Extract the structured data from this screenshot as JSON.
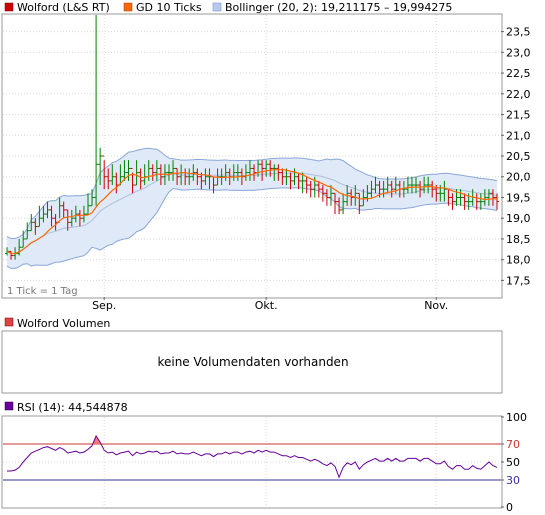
{
  "colors": {
    "bar_up": "#008000",
    "bar_down": "#cc0000",
    "gd": "#ff6600",
    "band_fill": "#dfe9f8",
    "band_line": "#8aa7d6",
    "mid_line": "#aebfdc",
    "rsi_line": "#660099",
    "rsi_upper": "#cc3333",
    "rsi_lower": "#333399",
    "grid": "#d8d8d8"
  },
  "chart_data": [
    {
      "type": "ohlc",
      "legend": [
        {
          "label": "Wolford (L&S RT)",
          "color": "#cc0000"
        },
        {
          "label": "GD 10 Ticks",
          "color": "#ff6600"
        },
        {
          "label": "Bollinger (20, 2): 19,211175 – 19,994275",
          "color": "#8aa7d6"
        }
      ],
      "annotation": "1 Tick = 1 Tag",
      "ylim": [
        17.1,
        23.9
      ],
      "yticks": [
        "17,5",
        "18,0",
        "18,5",
        "19,0",
        "19,5",
        "20,0",
        "20,5",
        "21,0",
        "21,5",
        "22,0",
        "22,5",
        "23,0",
        "23,5"
      ],
      "ytick_values": [
        17.5,
        18.0,
        18.5,
        19.0,
        19.5,
        20.0,
        20.5,
        21.0,
        21.5,
        22.0,
        22.5,
        23.0,
        23.5
      ],
      "xticks": [
        "Sep.",
        "Okt.",
        "Nov."
      ],
      "xtick_index": [
        24,
        64,
        106
      ],
      "close": [
        18.2,
        18.1,
        18.15,
        18.3,
        18.5,
        18.7,
        18.9,
        18.8,
        19.0,
        19.1,
        19.2,
        19.0,
        18.9,
        19.3,
        19.2,
        18.9,
        19.0,
        19.1,
        19.0,
        19.1,
        19.3,
        19.5,
        20.3,
        20.5,
        20.0,
        19.9,
        20.0,
        19.8,
        20.0,
        20.1,
        20.2,
        19.8,
        20.1,
        19.9,
        20.0,
        20.2,
        20.1,
        20.2,
        20.0,
        20.1,
        20.1,
        20.2,
        20.0,
        20.1,
        20.0,
        20.0,
        20.1,
        20.0,
        19.9,
        20.0,
        20.0,
        19.8,
        20.0,
        20.0,
        20.1,
        20.0,
        20.1,
        20.1,
        20.0,
        20.1,
        20.2,
        20.1,
        20.3,
        20.2,
        20.3,
        20.2,
        20.2,
        20.1,
        20.0,
        20.0,
        19.9,
        20.0,
        19.9,
        19.9,
        19.8,
        19.7,
        19.8,
        19.7,
        19.6,
        19.5,
        19.6,
        19.4,
        19.2,
        19.4,
        19.6,
        19.5,
        19.6,
        19.3,
        19.5,
        19.6,
        19.7,
        19.8,
        19.7,
        19.7,
        19.8,
        19.7,
        19.8,
        19.7,
        19.7,
        19.8,
        19.8,
        19.8,
        19.7,
        19.8,
        19.8,
        19.7,
        19.6,
        19.6,
        19.7,
        19.5,
        19.4,
        19.5,
        19.5,
        19.4,
        19.4,
        19.5,
        19.4,
        19.4,
        19.5,
        19.6,
        19.5,
        19.4
      ],
      "high": [
        18.3,
        18.2,
        18.3,
        18.5,
        18.7,
        18.9,
        19.1,
        19.0,
        19.3,
        19.3,
        19.4,
        19.3,
        19.1,
        19.5,
        19.4,
        19.2,
        19.2,
        19.3,
        19.2,
        19.3,
        19.6,
        19.7,
        23.9,
        20.7,
        20.4,
        20.2,
        20.3,
        20.1,
        20.3,
        20.4,
        20.4,
        20.1,
        20.4,
        20.2,
        20.3,
        20.4,
        20.3,
        20.4,
        20.3,
        20.3,
        20.3,
        20.4,
        20.2,
        20.3,
        20.2,
        20.2,
        20.3,
        20.2,
        20.1,
        20.2,
        20.2,
        20.0,
        20.2,
        20.2,
        20.3,
        20.2,
        20.3,
        20.3,
        20.2,
        20.3,
        20.4,
        20.3,
        20.4,
        20.4,
        20.4,
        20.4,
        20.3,
        20.3,
        20.2,
        20.2,
        20.1,
        20.2,
        20.1,
        20.1,
        20.0,
        19.9,
        20.0,
        19.9,
        19.8,
        19.7,
        19.8,
        19.6,
        19.5,
        19.6,
        19.8,
        19.7,
        19.8,
        19.6,
        19.7,
        19.8,
        19.9,
        20.0,
        19.9,
        19.9,
        20.0,
        19.9,
        20.0,
        19.9,
        19.9,
        20.0,
        20.0,
        20.0,
        19.9,
        20.0,
        20.0,
        19.9,
        19.8,
        19.8,
        19.9,
        19.7,
        19.6,
        19.7,
        19.7,
        19.6,
        19.6,
        19.7,
        19.6,
        19.6,
        19.7,
        19.7,
        19.7,
        19.6
      ],
      "low": [
        18.1,
        18.0,
        18.0,
        18.1,
        18.3,
        18.5,
        18.7,
        18.6,
        18.8,
        18.9,
        19.0,
        18.8,
        18.7,
        19.0,
        19.0,
        18.7,
        18.8,
        18.9,
        18.8,
        18.9,
        19.1,
        19.3,
        19.3,
        19.8,
        19.7,
        19.7,
        19.8,
        19.6,
        19.8,
        19.9,
        19.9,
        19.6,
        19.8,
        19.7,
        19.8,
        19.9,
        19.9,
        19.9,
        19.8,
        19.8,
        19.9,
        19.9,
        19.8,
        19.8,
        19.8,
        19.8,
        19.9,
        19.8,
        19.7,
        19.8,
        19.7,
        19.6,
        19.8,
        19.8,
        19.9,
        19.8,
        19.9,
        19.9,
        19.8,
        19.9,
        19.9,
        19.9,
        20.0,
        19.9,
        20.0,
        20.0,
        19.9,
        19.9,
        19.8,
        19.8,
        19.7,
        19.8,
        19.7,
        19.6,
        19.6,
        19.5,
        19.5,
        19.5,
        19.4,
        19.3,
        19.3,
        19.1,
        19.1,
        19.1,
        19.3,
        19.3,
        19.3,
        19.1,
        19.3,
        19.4,
        19.5,
        19.6,
        19.5,
        19.5,
        19.6,
        19.5,
        19.6,
        19.5,
        19.5,
        19.6,
        19.6,
        19.6,
        19.5,
        19.6,
        19.6,
        19.5,
        19.4,
        19.4,
        19.4,
        19.3,
        19.2,
        19.3,
        19.3,
        19.2,
        19.2,
        19.3,
        19.2,
        19.2,
        19.3,
        19.3,
        19.3,
        19.2
      ]
    },
    {
      "type": "bar",
      "legend": [
        {
          "label": "Wolford Volumen",
          "color": "#dd4444"
        }
      ],
      "message": "keine Volumendaten vorhanden"
    },
    {
      "type": "line",
      "legend": [
        {
          "label": "RSI (14): 44,544878",
          "color": "#660099"
        }
      ],
      "ylim": [
        0,
        100
      ],
      "yticks": [
        "0",
        "30",
        "50",
        "70",
        "100"
      ],
      "ytick_values": [
        0,
        30,
        50,
        70,
        100
      ],
      "upper": 70,
      "lower": 30,
      "values": [
        40,
        40,
        41,
        44,
        50,
        55,
        60,
        62,
        64,
        66,
        67,
        65,
        63,
        66,
        64,
        60,
        61,
        62,
        60,
        61,
        64,
        68,
        79,
        72,
        63,
        60,
        61,
        58,
        60,
        61,
        62,
        57,
        61,
        59,
        60,
        62,
        61,
        62,
        59,
        60,
        60,
        62,
        59,
        60,
        59,
        59,
        61,
        59,
        57,
        59,
        59,
        56,
        59,
        59,
        61,
        59,
        61,
        61,
        59,
        61,
        62,
        60,
        63,
        61,
        63,
        61,
        61,
        59,
        57,
        57,
        55,
        57,
        55,
        55,
        53,
        51,
        53,
        51,
        48,
        46,
        49,
        45,
        33,
        44,
        49,
        47,
        50,
        42,
        47,
        50,
        52,
        54,
        51,
        51,
        54,
        51,
        54,
        51,
        51,
        54,
        54,
        54,
        51,
        54,
        54,
        51,
        48,
        48,
        51,
        45,
        42,
        46,
        46,
        42,
        42,
        46,
        43,
        42,
        46,
        50,
        46,
        44
      ]
    }
  ]
}
